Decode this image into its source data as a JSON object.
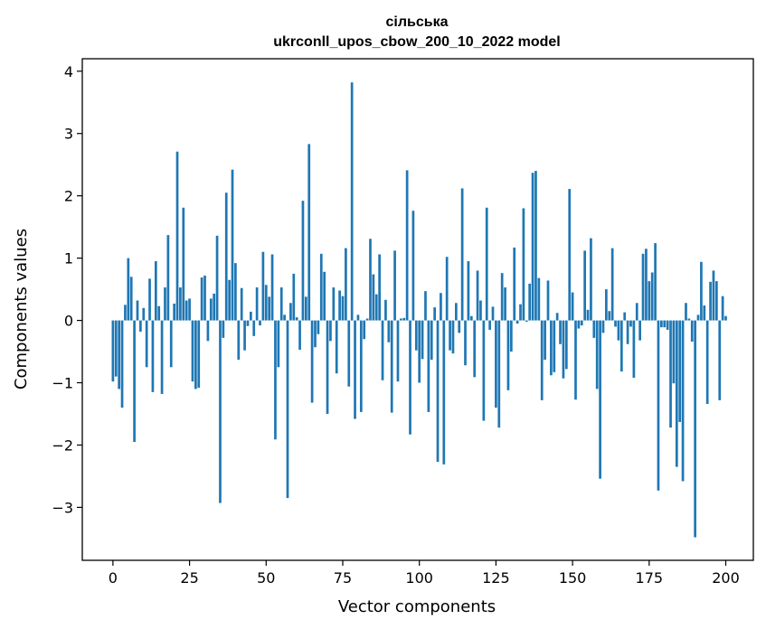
{
  "chart_data": {
    "type": "bar",
    "title_lines": [
      "сільська",
      "ukrconll_upos_cbow_200_10_2022 model"
    ],
    "xlabel": "Vector components",
    "ylabel": "Components values",
    "xlim": [
      -10,
      209
    ],
    "ylim": [
      -3.85,
      4.2
    ],
    "x_ticks": [
      0,
      25,
      50,
      75,
      100,
      125,
      150,
      175,
      200
    ],
    "y_ticks": [
      -3,
      -2,
      -1,
      0,
      1,
      2,
      3,
      4
    ],
    "x_tick_labels": [
      "0",
      "25",
      "50",
      "75",
      "100",
      "125",
      "150",
      "175",
      "200"
    ],
    "y_tick_labels": [
      "−3",
      "−2",
      "−1",
      "0",
      "1",
      "2",
      "3",
      "4"
    ],
    "bar_color": "#1f77b4",
    "grid": false,
    "values": [
      -0.98,
      -0.9,
      -1.1,
      -1.4,
      0.25,
      1.0,
      0.7,
      -1.95,
      0.32,
      -0.18,
      0.2,
      -0.75,
      0.67,
      -1.15,
      0.95,
      0.23,
      -1.18,
      0.53,
      1.37,
      -0.75,
      0.27,
      2.71,
      0.53,
      1.81,
      0.32,
      0.35,
      -0.98,
      -1.1,
      -1.08,
      0.69,
      0.72,
      -0.33,
      0.35,
      0.43,
      1.36,
      -2.93,
      -0.28,
      2.05,
      0.65,
      2.42,
      0.92,
      -0.63,
      0.52,
      -0.48,
      -0.09,
      0.14,
      -0.25,
      0.53,
      -0.08,
      1.1,
      0.57,
      0.38,
      1.06,
      -1.91,
      -0.75,
      0.53,
      0.09,
      -2.85,
      0.28,
      0.75,
      0.05,
      -0.47,
      1.92,
      0.38,
      2.83,
      -1.32,
      -0.43,
      -0.22,
      1.07,
      0.78,
      -1.5,
      -0.33,
      0.53,
      -0.85,
      0.48,
      0.39,
      1.16,
      -1.06,
      3.82,
      -1.58,
      0.09,
      -1.47,
      -0.3,
      0.03,
      1.31,
      0.74,
      0.42,
      1.06,
      -0.96,
      0.33,
      -0.35,
      -1.48,
      1.12,
      -0.98,
      0.03,
      0.04,
      2.41,
      -1.83,
      1.76,
      -0.48,
      -1.0,
      -0.62,
      0.47,
      -1.47,
      -0.63,
      0.21,
      -2.27,
      0.44,
      -2.31,
      1.02,
      -0.48,
      -0.53,
      0.28,
      -0.2,
      2.12,
      -0.72,
      0.95,
      0.07,
      -0.91,
      0.8,
      0.32,
      -1.61,
      1.81,
      -0.15,
      0.22,
      -1.4,
      -1.72,
      0.76,
      0.53,
      -1.12,
      -0.5,
      1.17,
      -0.05,
      0.26,
      1.8,
      -0.02,
      0.59,
      2.37,
      2.4,
      0.68,
      -1.28,
      -0.63,
      0.64,
      -0.88,
      -0.83,
      0.12,
      -0.38,
      -0.93,
      -0.78,
      2.11,
      0.45,
      -1.27,
      -0.13,
      -0.08,
      1.12,
      0.17,
      1.32,
      -0.28,
      -1.1,
      -2.54,
      -0.2,
      0.5,
      0.15,
      1.16,
      -0.1,
      -0.32,
      -0.82,
      0.13,
      -0.38,
      -0.1,
      -0.92,
      0.28,
      -0.32,
      1.07,
      1.15,
      0.63,
      0.77,
      1.24,
      -2.73,
      -0.11,
      -0.11,
      -0.15,
      -1.72,
      -1.01,
      -2.35,
      -1.63,
      -2.58,
      0.28,
      0.03,
      -0.34,
      -3.48,
      0.09,
      0.94,
      0.24,
      -1.34,
      0.62,
      0.8,
      0.63,
      -1.28,
      0.39,
      0.07
    ]
  }
}
